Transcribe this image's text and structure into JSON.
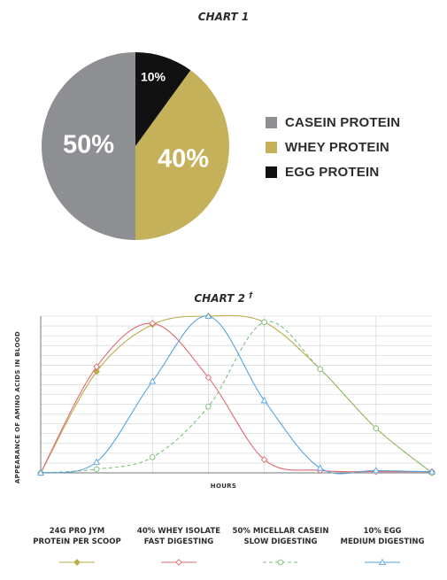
{
  "chart_data": [
    {
      "type": "pie",
      "title": "CHART 1",
      "slices": [
        {
          "label": "CASEIN PROTEIN",
          "value": 50,
          "display": "50%",
          "color": "#8e8f92"
        },
        {
          "label": "WHEY PROTEIN",
          "value": 40,
          "display": "40%",
          "color": "#c5b15a"
        },
        {
          "label": "EGG PROTEIN",
          "value": 10,
          "display": "10%",
          "color": "#111111"
        }
      ]
    },
    {
      "type": "line",
      "title": "CHART 2",
      "title_mark": "†",
      "xlabel": "HOURS",
      "ylabel": "APPEARANCE OF AMINO ACIDS IN BLOOD",
      "x": [
        0,
        1,
        2,
        3,
        4,
        5,
        6,
        7
      ],
      "xlim": [
        0,
        7
      ],
      "ylim": [
        0,
        13
      ],
      "grid": true,
      "legend_position": "bottom",
      "series": [
        {
          "line1": "24G PRO JYM",
          "line2": "PROTEIN PER SCOOP",
          "color": "#b8ae4a",
          "dash": "solid",
          "marker": "diamond-filled",
          "values": [
            0,
            8.4,
            12.3,
            13,
            12.5,
            8.6,
            3.7,
            0
          ]
        },
        {
          "line1": "40% WHEY ISOLATE",
          "line2": "FAST DIGESTING",
          "color": "#e06a72",
          "dash": "solid",
          "marker": "diamond-open",
          "values": [
            0,
            8.8,
            12.4,
            7.9,
            1.1,
            0.2,
            0.1,
            0.1
          ]
        },
        {
          "line1": "50% MICELLAR CASEIN",
          "line2": "SLOW DIGESTING",
          "color": "#7cc07a",
          "dash": "dashed",
          "marker": "circle-open",
          "values": [
            0,
            0.3,
            1.3,
            5.5,
            12.5,
            8.6,
            3.7,
            0
          ]
        },
        {
          "line1": "10% EGG",
          "line2": "MEDIUM DIGESTING",
          "color": "#5aa3dc",
          "dash": "solid",
          "marker": "triangle-open",
          "values": [
            0,
            0.9,
            7.6,
            13.0,
            6.0,
            0.4,
            0.2,
            0.1
          ]
        }
      ]
    }
  ]
}
